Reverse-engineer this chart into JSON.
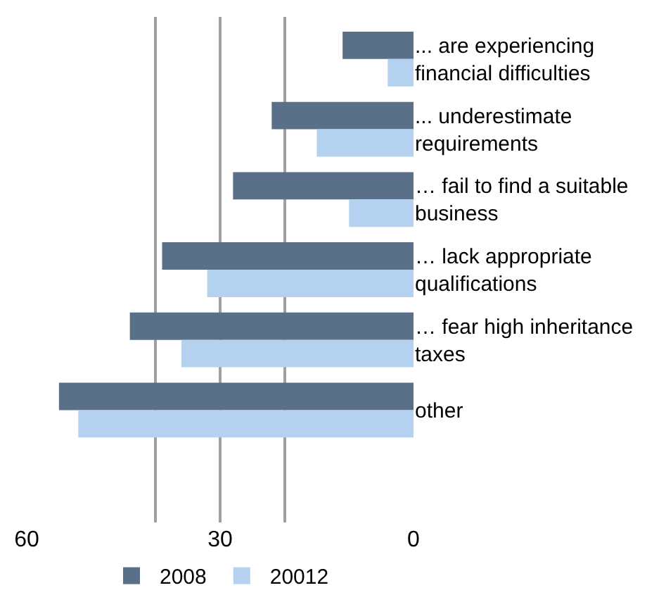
{
  "chart_data": {
    "type": "bar",
    "orientation": "horizontal",
    "categories": [
      "... are experiencing\nfinancial difficulties",
      "... underestimate\nrequirements",
      "… fail to find a suitable\nbusiness",
      "… lack appropriate\nqualifications",
      "… fear high inheritance\ntaxes",
      "other"
    ],
    "series": [
      {
        "name": "2008",
        "color": "#5a7088",
        "values": [
          11,
          22,
          28,
          39,
          44,
          55
        ]
      },
      {
        "name": "20012",
        "color": "#b4d2f0",
        "values": [
          4,
          15,
          10,
          32,
          36,
          52
        ]
      }
    ],
    "xlim": [
      60,
      0
    ],
    "xticks": [
      0,
      {
        "value": 20,
        "label": null
      },
      30,
      {
        "value": 40,
        "label": null
      },
      60
    ],
    "grid": "x",
    "legend": "bottom"
  }
}
